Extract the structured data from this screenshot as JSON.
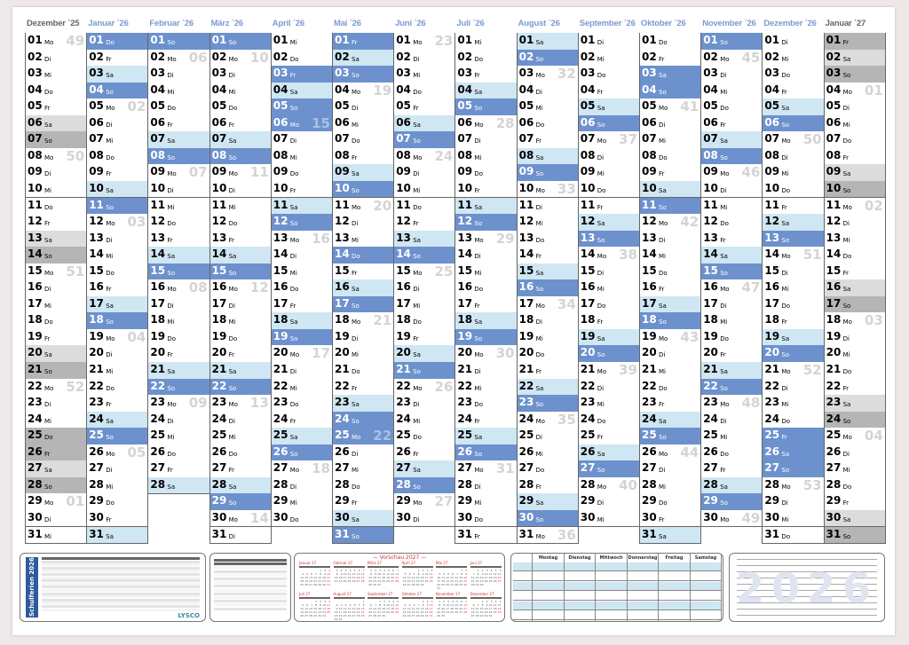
{
  "weekday_abbr": [
    "Mo",
    "Di",
    "Mi",
    "Do",
    "Fr",
    "Sa",
    "So"
  ],
  "months": [
    {
      "label": "Dezember ´25",
      "year": 2025,
      "month": 12,
      "style": "gray"
    },
    {
      "label": "Januar ´26",
      "year": 2026,
      "month": 1,
      "style": "blue"
    },
    {
      "label": "Februar ´26",
      "year": 2026,
      "month": 2,
      "style": "blue"
    },
    {
      "label": "März ´26",
      "year": 2026,
      "month": 3,
      "style": "blue"
    },
    {
      "label": "April ´26",
      "year": 2026,
      "month": 4,
      "style": "blue"
    },
    {
      "label": "Mai ´26",
      "year": 2026,
      "month": 5,
      "style": "blue"
    },
    {
      "label": "Juni ´26",
      "year": 2026,
      "month": 6,
      "style": "blue"
    },
    {
      "label": "Juli ´26",
      "year": 2026,
      "month": 7,
      "style": "blue"
    },
    {
      "label": "August ´26",
      "year": 2026,
      "month": 8,
      "style": "blue"
    },
    {
      "label": "September ´26",
      "year": 2026,
      "month": 9,
      "style": "blue"
    },
    {
      "label": "Oktober ´26",
      "year": 2026,
      "month": 10,
      "style": "blue"
    },
    {
      "label": "November ´26",
      "year": 2026,
      "month": 11,
      "style": "blue"
    },
    {
      "label": "Dezember ´26",
      "year": 2026,
      "month": 12,
      "style": "blue"
    },
    {
      "label": "Januar ´27",
      "year": 2027,
      "month": 1,
      "style": "gray"
    }
  ],
  "holidays": [
    "2025-12-25",
    "2025-12-26",
    "2026-01-01",
    "2026-04-03",
    "2026-04-06",
    "2026-05-01",
    "2026-05-14",
    "2026-05-25",
    "2026-10-03",
    "2026-12-25",
    "2026-12-26",
    "2027-01-01"
  ],
  "colors": {
    "sunday": "#6d91cd",
    "saturday": "#cfe6f3",
    "header": "#7a9bd0",
    "gray_weekend": "#b5b5b5"
  },
  "footer": {
    "schulferien_title": "Schulferien 2026",
    "brand": "LYSCO",
    "vorschau_title": "— Vorschau 2027 —",
    "vorschau_months": [
      "Januar 27",
      "Februar 27",
      "März 27",
      "April 27",
      "Mai 27",
      "Juni 27",
      "Juli 27",
      "August 27",
      "September 27",
      "Oktober 27",
      "November 27",
      "Dezember 27"
    ],
    "stundenplan_days": [
      "Montag",
      "Dienstag",
      "Mittwoch",
      "Donnerstag",
      "Freitag",
      "Samstag"
    ],
    "notes_year": "2026"
  }
}
